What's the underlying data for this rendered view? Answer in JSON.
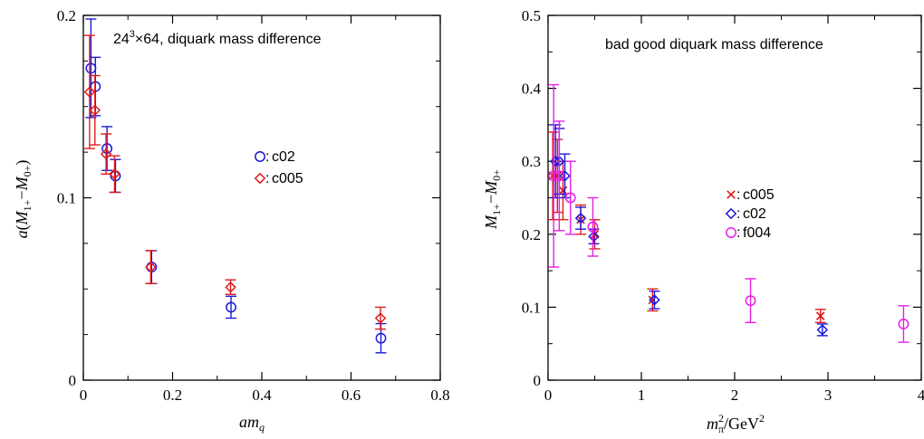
{
  "chart_data": [
    {
      "type": "scatter",
      "annotation": "24³×64, diquark mass difference",
      "xlabel": "am_q",
      "ylabel": "a(M_1+ − M_0+)",
      "xlim": [
        0,
        0.8
      ],
      "ylim": [
        0,
        0.2
      ],
      "xticks": [
        0,
        0.2,
        0.4,
        0.6,
        0.8
      ],
      "xtick_labels": [
        "0",
        "0.2",
        "0.4",
        "0.6",
        "0.8"
      ],
      "yticks": [
        0,
        0.1,
        0.2
      ],
      "ytick_labels": [
        "0",
        "0.1",
        "0.2"
      ],
      "legend_position": "center-right",
      "series": [
        {
          "name": "c02",
          "marker": "circle",
          "color": "#1a1adb",
          "points": [
            {
              "x": 0.017,
              "y": 0.171,
              "err": 0.027
            },
            {
              "x": 0.027,
              "y": 0.161,
              "err": 0.016
            },
            {
              "x": 0.053,
              "y": 0.127,
              "err": 0.012
            },
            {
              "x": 0.072,
              "y": 0.112,
              "err": 0.009
            },
            {
              "x": 0.153,
              "y": 0.062,
              "err": 0.009
            },
            {
              "x": 0.331,
              "y": 0.04,
              "err": 0.006
            },
            {
              "x": 0.667,
              "y": 0.023,
              "err": 0.008
            }
          ]
        },
        {
          "name": "c005",
          "marker": "diamond",
          "color": "#e01b1b",
          "points": [
            {
              "x": 0.014,
              "y": 0.158,
              "err": 0.031
            },
            {
              "x": 0.026,
              "y": 0.148,
              "err": 0.019
            },
            {
              "x": 0.051,
              "y": 0.124,
              "err": 0.011
            },
            {
              "x": 0.07,
              "y": 0.113,
              "err": 0.01
            },
            {
              "x": 0.151,
              "y": 0.062,
              "err": 0.009
            },
            {
              "x": 0.33,
              "y": 0.051,
              "err": 0.004
            },
            {
              "x": 0.666,
              "y": 0.034,
              "err": 0.006
            }
          ]
        }
      ]
    },
    {
      "type": "scatter",
      "annotation": "bad good diquark mass difference",
      "xlabel": "m_π²/GeV²",
      "ylabel": "M_1+ − M_0+",
      "xlim": [
        0,
        4
      ],
      "ylim": [
        0,
        0.5
      ],
      "xticks": [
        0,
        1,
        2,
        3,
        4
      ],
      "xtick_labels": [
        "0",
        "1",
        "2",
        "3",
        "4"
      ],
      "yticks": [
        0,
        0.1,
        0.2,
        0.3,
        0.4,
        0.5
      ],
      "ytick_labels": [
        "0",
        "0.1",
        "0.2",
        "0.3",
        "0.4",
        "0.5"
      ],
      "legend_position": "center-right",
      "series": [
        {
          "name": "c005",
          "marker": "cross",
          "color": "#e01b1b",
          "points": [
            {
              "x": 0.05,
              "y": 0.28,
              "err": 0.06
            },
            {
              "x": 0.1,
              "y": 0.28,
              "err": 0.05
            },
            {
              "x": 0.16,
              "y": 0.26,
              "err": 0.04
            },
            {
              "x": 0.35,
              "y": 0.22,
              "err": 0.02
            },
            {
              "x": 0.5,
              "y": 0.2,
              "err": 0.02
            },
            {
              "x": 1.12,
              "y": 0.11,
              "err": 0.015
            },
            {
              "x": 2.92,
              "y": 0.088,
              "err": 0.009
            }
          ]
        },
        {
          "name": "c02",
          "marker": "diamond",
          "color": "#1a1adb",
          "points": [
            {
              "x": 0.08,
              "y": 0.3,
              "err": 0.05
            },
            {
              "x": 0.12,
              "y": 0.3,
              "err": 0.045
            },
            {
              "x": 0.18,
              "y": 0.28,
              "err": 0.03
            },
            {
              "x": 0.35,
              "y": 0.222,
              "err": 0.015
            },
            {
              "x": 0.49,
              "y": 0.197,
              "err": 0.01
            },
            {
              "x": 1.14,
              "y": 0.11,
              "err": 0.012
            },
            {
              "x": 2.94,
              "y": 0.069,
              "err": 0.008
            }
          ]
        },
        {
          "name": "f004",
          "marker": "circle",
          "color": "#e81ee8",
          "points": [
            {
              "x": 0.06,
              "y": 0.28,
              "err": 0.125
            },
            {
              "x": 0.12,
              "y": 0.28,
              "err": 0.075
            },
            {
              "x": 0.24,
              "y": 0.25,
              "err": 0.05
            },
            {
              "x": 0.48,
              "y": 0.21,
              "err": 0.04
            },
            {
              "x": 2.17,
              "y": 0.109,
              "err": 0.03
            },
            {
              "x": 3.81,
              "y": 0.077,
              "err": 0.025
            }
          ]
        }
      ]
    }
  ]
}
